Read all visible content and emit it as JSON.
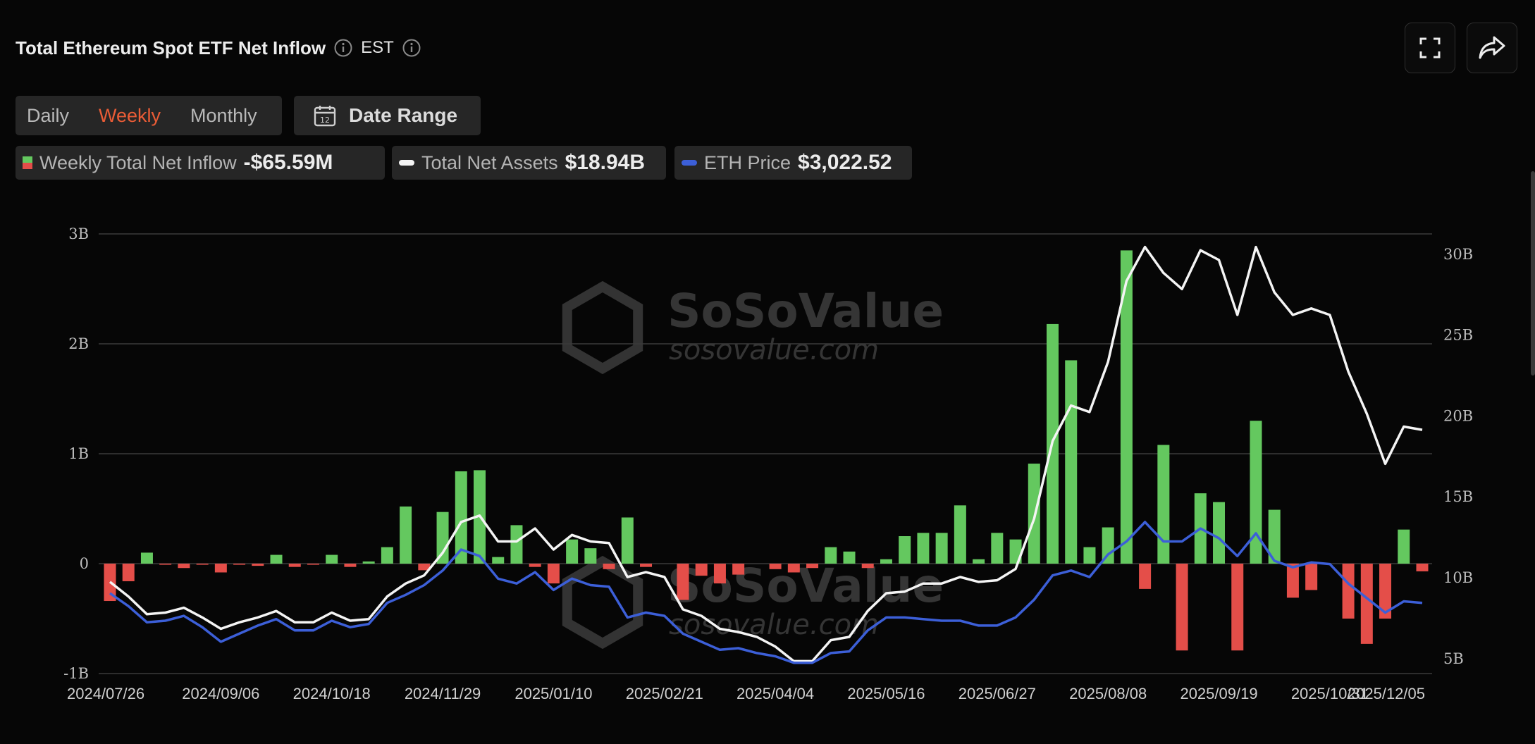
{
  "header": {
    "title": "Total Ethereum Spot ETF Net Inflow",
    "timezone": "EST"
  },
  "toolbar": {
    "periods": [
      "Daily",
      "Weekly",
      "Monthly"
    ],
    "active_period": "Weekly",
    "date_range_label": "Date Range",
    "calendar_day": "12"
  },
  "legend": {
    "net_inflow": {
      "label": "Weekly Total Net Inflow",
      "value": "-$65.59M"
    },
    "net_assets": {
      "label": "Total Net Assets",
      "value": "$18.94B"
    },
    "eth_price": {
      "label": "ETH Price",
      "value": "$3,022.52"
    }
  },
  "watermark": {
    "name": "SoSoValue",
    "url": "sosovalue.com"
  },
  "colors": {
    "positive": "#64c85f",
    "negative": "#e44e49",
    "assets_line": "#f4f4f4",
    "price_line": "#3c5fd8",
    "accent": "#ea5c36"
  },
  "chart_data": {
    "type": "bar+line",
    "title": "Total Ethereum Spot ETF Net Inflow",
    "x_ticks": [
      "2024/07/26",
      "2024/09/06",
      "2024/10/18",
      "2024/11/29",
      "2025/01/10",
      "2025/02/21",
      "2025/04/04",
      "2025/05/16",
      "2025/06/27",
      "2025/08/08",
      "2025/09/19",
      "2025/10/31",
      "2025/12/05"
    ],
    "x_tick_positions": [
      0,
      6,
      12,
      18,
      24,
      30,
      36,
      42,
      48,
      54,
      60,
      66,
      71
    ],
    "left_axis": {
      "ticks": [
        "3B",
        "2B",
        "1B",
        "0",
        "-1B"
      ],
      "range": [
        -1.0,
        3.0
      ],
      "unit": "USD billions"
    },
    "right_axis": {
      "ticks": [
        "30B",
        "25B",
        "20B",
        "15B",
        "10B",
        "5B"
      ],
      "range": [
        4.6,
        30.6
      ],
      "unit": "USD billions"
    },
    "series": [
      {
        "name": "Weekly Total Net Inflow",
        "type": "bar",
        "axis": "left",
        "values": [
          -0.34,
          -0.16,
          0.1,
          -0.01,
          -0.04,
          -0.01,
          -0.08,
          -0.01,
          -0.02,
          0.08,
          -0.03,
          -0.01,
          0.08,
          -0.03,
          0.02,
          0.15,
          0.52,
          -0.06,
          0.47,
          0.84,
          0.85,
          0.06,
          0.35,
          -0.03,
          -0.18,
          0.22,
          0.14,
          -0.05,
          0.42,
          -0.03,
          0.0,
          -0.33,
          -0.11,
          -0.18,
          -0.1,
          0.0,
          -0.05,
          -0.08,
          -0.04,
          0.15,
          0.11,
          -0.04,
          0.04,
          0.25,
          0.28,
          0.28,
          0.53,
          0.04,
          0.28,
          0.22,
          0.91,
          2.18,
          1.85,
          0.15,
          0.33,
          2.85,
          -0.23,
          1.08,
          -0.79,
          0.64,
          0.56,
          -0.79,
          1.3,
          0.49,
          -0.31,
          -0.24,
          0.0,
          -0.5,
          -0.73,
          -0.5,
          0.31,
          -0.07
        ]
      },
      {
        "name": "Total Net Assets",
        "type": "line",
        "axis": "right",
        "values": [
          9.7,
          8.8,
          7.7,
          7.8,
          8.1,
          7.5,
          6.8,
          7.2,
          7.5,
          7.9,
          7.2,
          7.2,
          7.8,
          7.3,
          7.4,
          8.8,
          9.6,
          10.1,
          11.5,
          13.4,
          13.8,
          12.2,
          12.2,
          13.0,
          11.7,
          12.6,
          12.2,
          12.1,
          10.0,
          10.3,
          10.0,
          8.0,
          7.6,
          6.8,
          6.6,
          6.3,
          5.7,
          4.8,
          4.8,
          6.1,
          6.3,
          7.9,
          9.0,
          9.1,
          9.6,
          9.6,
          10.0,
          9.7,
          9.8,
          10.5,
          13.6,
          18.4,
          20.6,
          20.2,
          23.3,
          28.3,
          30.4,
          28.8,
          27.8,
          30.2,
          29.6,
          26.2,
          30.4,
          27.6,
          26.2,
          26.6,
          26.2,
          22.7,
          20.1,
          17.0,
          19.3,
          19.1
        ]
      },
      {
        "name": "ETH Price",
        "type": "line",
        "axis": "right",
        "values": [
          9.0,
          8.2,
          7.2,
          7.3,
          7.6,
          6.9,
          6.0,
          6.5,
          7.0,
          7.4,
          6.7,
          6.7,
          7.3,
          6.9,
          7.1,
          8.4,
          8.9,
          9.5,
          10.4,
          11.7,
          11.3,
          9.9,
          9.6,
          10.3,
          9.2,
          9.9,
          9.5,
          9.4,
          7.5,
          7.8,
          7.6,
          6.5,
          6.0,
          5.5,
          5.6,
          5.3,
          5.1,
          4.7,
          4.7,
          5.3,
          5.4,
          6.7,
          7.5,
          7.5,
          7.4,
          7.3,
          7.3,
          7.0,
          7.0,
          7.5,
          8.6,
          10.1,
          10.4,
          10.0,
          11.4,
          12.2,
          13.4,
          12.2,
          12.2,
          13.0,
          12.4,
          11.3,
          12.7,
          11.0,
          10.6,
          10.9,
          10.8,
          9.6,
          8.7,
          7.8,
          8.5,
          8.4
        ]
      }
    ],
    "grid": true
  }
}
